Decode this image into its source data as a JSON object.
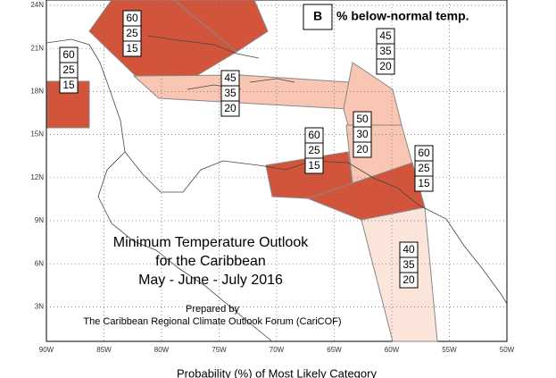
{
  "map": {
    "lon_labels": [
      "90W",
      "85W",
      "80W",
      "75W",
      "70W",
      "65W",
      "60W",
      "55W",
      "50W"
    ],
    "lat_labels": [
      "24N",
      "21N",
      "18N",
      "15N",
      "12N",
      "9N",
      "6N",
      "3N"
    ],
    "regions": [
      {
        "probabilities": [
          60,
          25,
          15
        ],
        "color": "#d2553b"
      },
      {
        "probabilities": [
          60,
          25,
          15
        ],
        "color": "#d2553b"
      },
      {
        "probabilities": [
          45,
          35,
          20
        ],
        "color": "#f8c6b2"
      },
      {
        "probabilities": [
          45,
          35,
          20
        ],
        "color": "#f8c6b2"
      },
      {
        "probabilities": [
          50,
          30,
          20
        ],
        "color": "#f8c6b2"
      },
      {
        "probabilities": [
          60,
          25,
          15
        ],
        "color": "#d2553b"
      },
      {
        "probabilities": [
          60,
          25,
          15
        ],
        "color": "#d2553b"
      },
      {
        "probabilities": [
          40,
          35,
          20
        ],
        "color": "#fbe4d9"
      }
    ],
    "title": [
      "Minimum Temperature Outlook",
      "for the Caribbean",
      "May - June - July 2016"
    ],
    "credit": [
      "Prepared by",
      "The Caribbean Regional Climate Outlook Forum (CariCOF)"
    ],
    "legend": {
      "key": "B",
      "text": "% below-normal temp."
    },
    "footer": "Probability (%) of Most Likely Category"
  }
}
